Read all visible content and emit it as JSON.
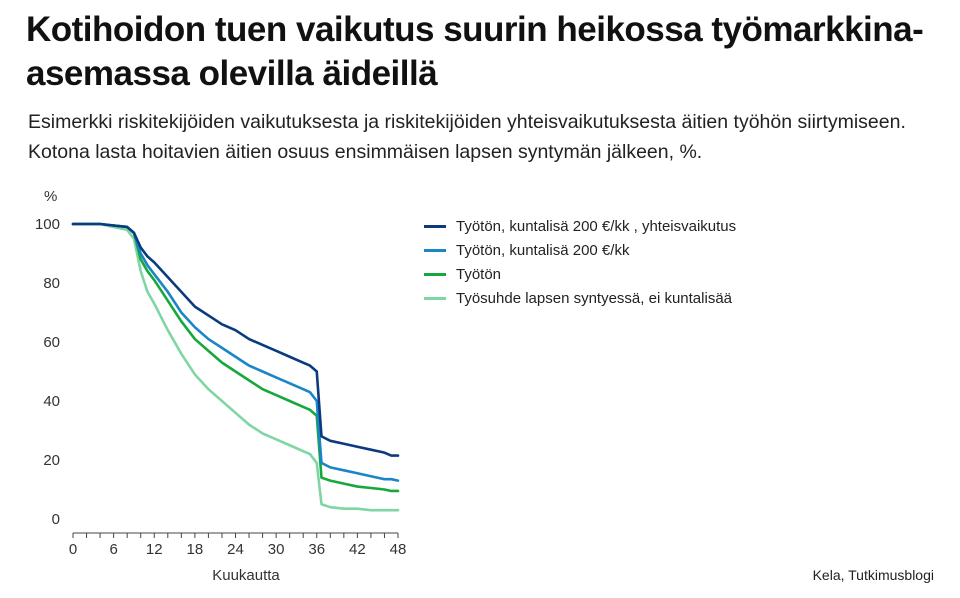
{
  "title": "Kotihoidon tuen vaikutus suurin heikossa työmarkkina-asemassa olevilla äideillä",
  "subtitle": "Esimerkki riskitekijöiden vaikutuksesta ja riskitekijöiden yhteisvaikutuksesta äitien työhön siirtymiseen. Kotona lasta hoitavien äitien osuus ensimmäisen lapsen syntymän jälkeen, %.",
  "source": "Kela, Tutkimusblogi",
  "chart_data": {
    "type": "line",
    "title": "Kotihoidon tuen vaikutus suurin heikossa työmarkkina-asemassa olevilla äideillä",
    "xlabel": "Kuukautta",
    "ylabel": "%",
    "xlim": [
      0,
      48
    ],
    "ylim": [
      0,
      100
    ],
    "x_ticks": [
      0,
      6,
      12,
      18,
      24,
      30,
      36,
      42,
      48
    ],
    "y_ticks": [
      0,
      20,
      40,
      60,
      80,
      100
    ],
    "grid": false,
    "legend_position": "right",
    "x": [
      0,
      2,
      4,
      6,
      8,
      9,
      10,
      11,
      12,
      14,
      16,
      18,
      20,
      22,
      24,
      26,
      28,
      30,
      32,
      34,
      35,
      36,
      36.7,
      38,
      40,
      42,
      44,
      46,
      47,
      48
    ],
    "series": [
      {
        "name": "Työtön, kuntalisä 200 €/kk , yhteisvaikutus",
        "color": "#0b3a7e",
        "values": [
          100,
          100,
          100,
          99.5,
          99,
          97,
          92,
          89,
          87,
          82,
          77,
          72,
          69,
          66,
          64,
          61,
          59,
          57,
          55,
          53,
          52,
          50,
          28,
          26.5,
          25.5,
          24.5,
          23.5,
          22.5,
          21.5,
          21.5
        ]
      },
      {
        "name": "Työtön, kuntalisä 200 €/kk",
        "color": "#1a86c8",
        "values": [
          100,
          100,
          100,
          99.5,
          99,
          97,
          90,
          86,
          83,
          77,
          70,
          65,
          61,
          58,
          55,
          52,
          50,
          48,
          46,
          44,
          43,
          40,
          19,
          17.5,
          16.5,
          15.5,
          14.5,
          13.5,
          13.5,
          13
        ]
      },
      {
        "name": "Työtön",
        "color": "#16a83c",
        "values": [
          100,
          100,
          100,
          99.5,
          99,
          97,
          88,
          84,
          81,
          74,
          67,
          61,
          57,
          53,
          50,
          47,
          44,
          42,
          40,
          38,
          37,
          35,
          14,
          13,
          12,
          11,
          10.5,
          10,
          9.5,
          9.5
        ]
      },
      {
        "name": "Työsuhde lapsen syntyessä, ei kuntalisää",
        "color": "#7fd6a4",
        "values": [
          100,
          100,
          100,
          99,
          98,
          95,
          84,
          77,
          73,
          64,
          56,
          49,
          44,
          40,
          36,
          32,
          29,
          27,
          25,
          23,
          22,
          19,
          5,
          4,
          3.5,
          3.5,
          3,
          3,
          3,
          3
        ]
      }
    ]
  }
}
